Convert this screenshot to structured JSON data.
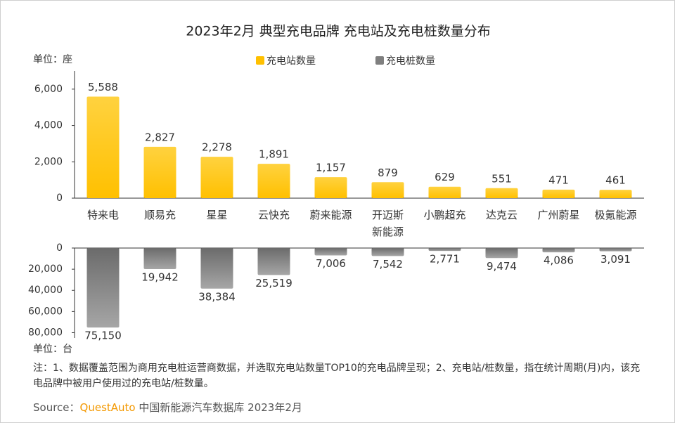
{
  "chart_data": {
    "type": "bar",
    "title": "2023年2月 典型充电品牌 充电站及充电桩数量分布",
    "categories": [
      "特来电",
      "顺易充",
      "星星",
      "云快充",
      "蔚来能源",
      "开迈斯\n新能源",
      "小鹏超充",
      "达克云",
      "广州蔚星",
      "极氪能源"
    ],
    "top_unit": "单位：座",
    "bottom_unit": "单位：台",
    "series": [
      {
        "name": "充电站数量",
        "color": "#ffc000",
        "values": [
          5588,
          2827,
          2278,
          1891,
          1157,
          879,
          629,
          551,
          471,
          461
        ],
        "value_labels": [
          "5,588",
          "2,827",
          "2,278",
          "1,891",
          "1,157",
          "879",
          "629",
          "551",
          "471",
          "461"
        ]
      },
      {
        "name": "充电桩数量",
        "color": "#7f7f7f",
        "values": [
          75150,
          19942,
          38384,
          25519,
          7006,
          7542,
          2771,
          9474,
          4086,
          3091
        ],
        "value_labels": [
          "75,150",
          "19,942",
          "38,384",
          "25,519",
          "7,006",
          "7,542",
          "2,771",
          "9,474",
          "4,086",
          "3,091"
        ]
      }
    ],
    "ylim": [
      0,
      7000
    ],
    "yticks": [
      0,
      {
        "value": 2000,
        "label": "2,000"
      },
      {
        "value": 4000,
        "label": "4,000"
      },
      {
        "value": 6000,
        "label": "6,000"
      }
    ],
    "y2lim": [
      0,
      85000
    ],
    "y2ticks": [
      0,
      {
        "value": 20000,
        "label": "20,000"
      },
      {
        "value": 40000,
        "label": "40,000"
      },
      {
        "value": 60000,
        "label": "60,000"
      },
      {
        "value": 80000,
        "label": "80,000"
      }
    ],
    "note": "注：1、数据覆盖范围为商用充电桩运营商数据，并选取充电站数量TOP10的充电品牌呈现；2、充电站/桩数量，指在统计周期(月)内，该充电品牌中被用户使用过的充电站/桩数量。",
    "source": {
      "label": "Source：",
      "brand": "QuestAuto",
      "text": "中国新能源汽车数据库 2023年2月"
    }
  }
}
